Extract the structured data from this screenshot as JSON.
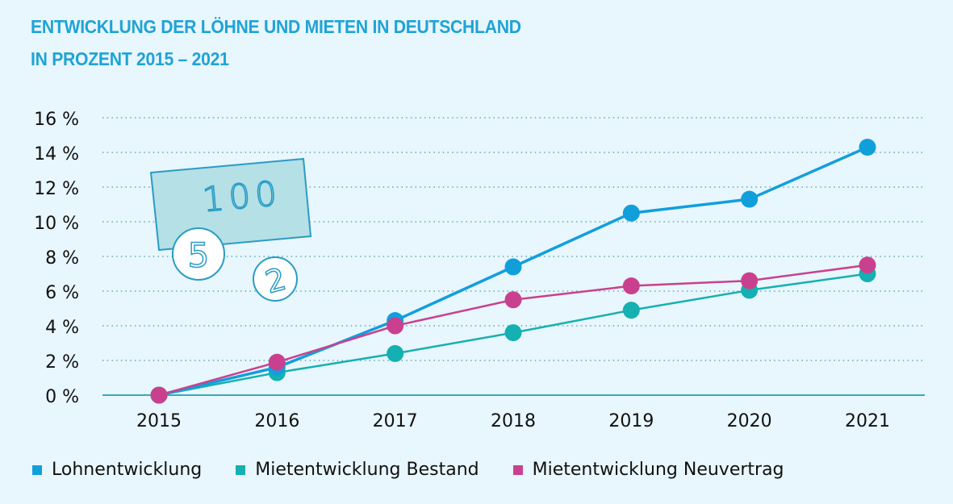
{
  "chart_data": {
    "type": "line",
    "title": "ENTWICKLUNG DER LÖHNE UND MIETEN IN DEUTSCHLAND",
    "subtitle": "IN PROZENT 2015 – 2021",
    "xlabel": "",
    "ylabel": "",
    "x": [
      "2015",
      "2016",
      "2017",
      "2018",
      "2019",
      "2020",
      "2021"
    ],
    "ylim": [
      0,
      16
    ],
    "yticks": [
      0,
      2,
      4,
      6,
      8,
      10,
      12,
      14,
      16
    ],
    "ytick_labels": [
      "0 %",
      "2 %",
      "4 %",
      "6 %",
      "8 %",
      "10 %",
      "12 %",
      "14 %",
      "16 %"
    ],
    "grid": true,
    "legend_position": "bottom",
    "series": [
      {
        "name": "Lohnentwicklung",
        "color": "#119fdc",
        "values": [
          0,
          1.6,
          4.3,
          7.4,
          10.5,
          11.3,
          14.3
        ]
      },
      {
        "name": "Mietentwicklung Bestand",
        "color": "#15b0b1",
        "values": [
          0,
          1.3,
          2.4,
          3.6,
          4.9,
          6.05,
          7.0
        ]
      },
      {
        "name": "Mietentwicklung Neuvertrag",
        "color": "#c9418e",
        "values": [
          0,
          1.9,
          4.0,
          5.5,
          6.3,
          6.6,
          7.5
        ]
      }
    ]
  },
  "illustration": {
    "banknote_label": "100",
    "coin_labels": [
      "5",
      "2"
    ]
  }
}
